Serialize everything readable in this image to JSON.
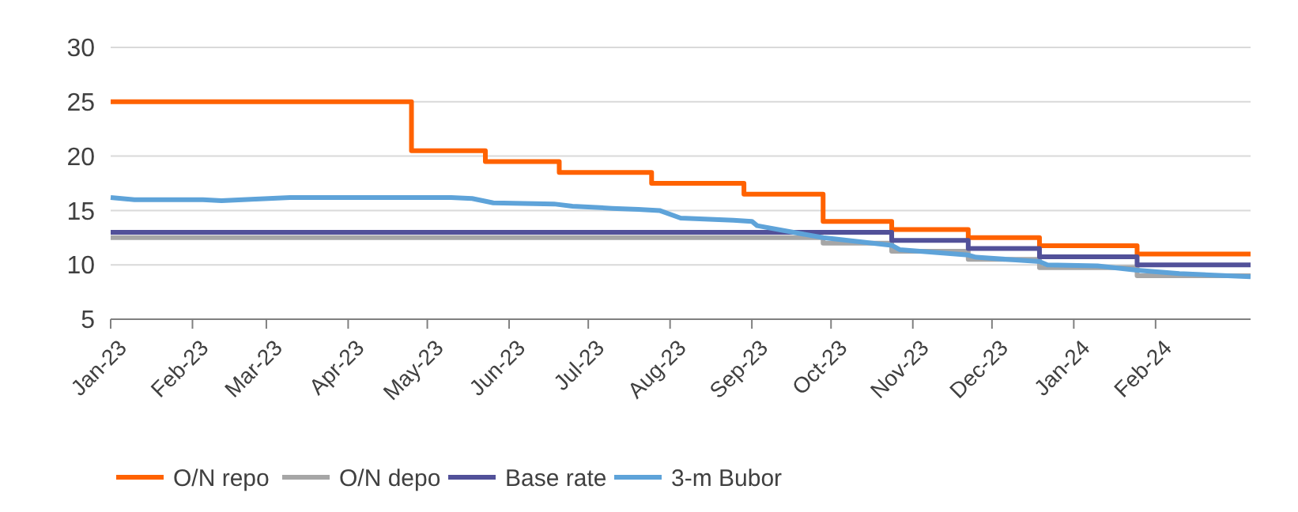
{
  "chart_data": {
    "type": "step",
    "xlim": [
      "2023-01-01",
      "2024-03-08"
    ],
    "xticks": [
      {
        "value": "2023-01-01",
        "label": "Jan-23"
      },
      {
        "value": "2023-02-01",
        "label": "Feb-23"
      },
      {
        "value": "2023-03-01",
        "label": "Mar-23"
      },
      {
        "value": "2023-04-01",
        "label": "Apr-23"
      },
      {
        "value": "2023-05-01",
        "label": "May-23"
      },
      {
        "value": "2023-06-01",
        "label": "Jun-23"
      },
      {
        "value": "2023-07-01",
        "label": "Jul-23"
      },
      {
        "value": "2023-08-01",
        "label": "Aug-23"
      },
      {
        "value": "2023-09-01",
        "label": "Sep-23"
      },
      {
        "value": "2023-10-01",
        "label": "Oct-23"
      },
      {
        "value": "2023-11-01",
        "label": "Nov-23"
      },
      {
        "value": "2023-12-01",
        "label": "Dec-23"
      },
      {
        "value": "2024-01-01",
        "label": "Jan-24"
      },
      {
        "value": "2024-02-01",
        "label": "Feb-24"
      }
    ],
    "ylim": [
      5,
      30
    ],
    "yticks": [
      5,
      10,
      15,
      20,
      25,
      30
    ],
    "grid": "y",
    "legend": "bottom",
    "line_style": "solid",
    "marker": "none",
    "series": [
      {
        "name": "O/N repo",
        "color": "#ff6200",
        "x": [
          "2023-01-01",
          "2023-04-25",
          "2023-05-23",
          "2023-06-20",
          "2023-07-25",
          "2023-08-29",
          "2023-09-28",
          "2023-10-24",
          "2023-11-22",
          "2023-12-19",
          "2024-01-25",
          "2024-03-08"
        ],
        "values": [
          25,
          20.5,
          19.5,
          18.5,
          17.5,
          16.5,
          14,
          13.25,
          12.5,
          11.75,
          11,
          11
        ]
      },
      {
        "name": "O/N depo",
        "color": "#a6a6a6",
        "x": [
          "2023-01-01",
          "2023-09-28",
          "2023-10-24",
          "2023-11-22",
          "2023-12-19",
          "2024-01-25",
          "2024-03-08"
        ],
        "values": [
          12.5,
          12,
          11.25,
          10.5,
          9.75,
          9,
          9
        ]
      },
      {
        "name": "Base rate",
        "color": "#525199",
        "x": [
          "2023-01-01",
          "2023-10-24",
          "2023-11-22",
          "2023-12-19",
          "2024-01-25",
          "2024-03-08"
        ],
        "values": [
          13,
          12.25,
          11.5,
          10.75,
          10,
          10
        ]
      },
      {
        "name": "3-m Bubor",
        "type": "line",
        "color": "#5ea3d9",
        "x": [
          "2023-01-01",
          "2023-01-10",
          "2023-02-05",
          "2023-02-12",
          "2023-02-20",
          "2023-03-10",
          "2023-05-10",
          "2023-05-18",
          "2023-05-26",
          "2023-06-18",
          "2023-06-25",
          "2023-07-10",
          "2023-07-20",
          "2023-07-28",
          "2023-08-05",
          "2023-08-25",
          "2023-09-01",
          "2023-09-03",
          "2023-09-28",
          "2023-10-24",
          "2023-10-27",
          "2023-11-22",
          "2023-11-25",
          "2023-12-19",
          "2023-12-22",
          "2024-01-10",
          "2024-01-25",
          "2024-02-10",
          "2024-03-08"
        ],
        "values": [
          16.2,
          16.0,
          16.0,
          15.9,
          16.0,
          16.2,
          16.2,
          16.1,
          15.7,
          15.6,
          15.4,
          15.2,
          15.1,
          15.0,
          14.3,
          14.1,
          14.0,
          13.6,
          12.5,
          11.8,
          11.4,
          10.9,
          10.7,
          10.3,
          10.0,
          9.9,
          9.5,
          9.2,
          8.9
        ]
      }
    ]
  }
}
